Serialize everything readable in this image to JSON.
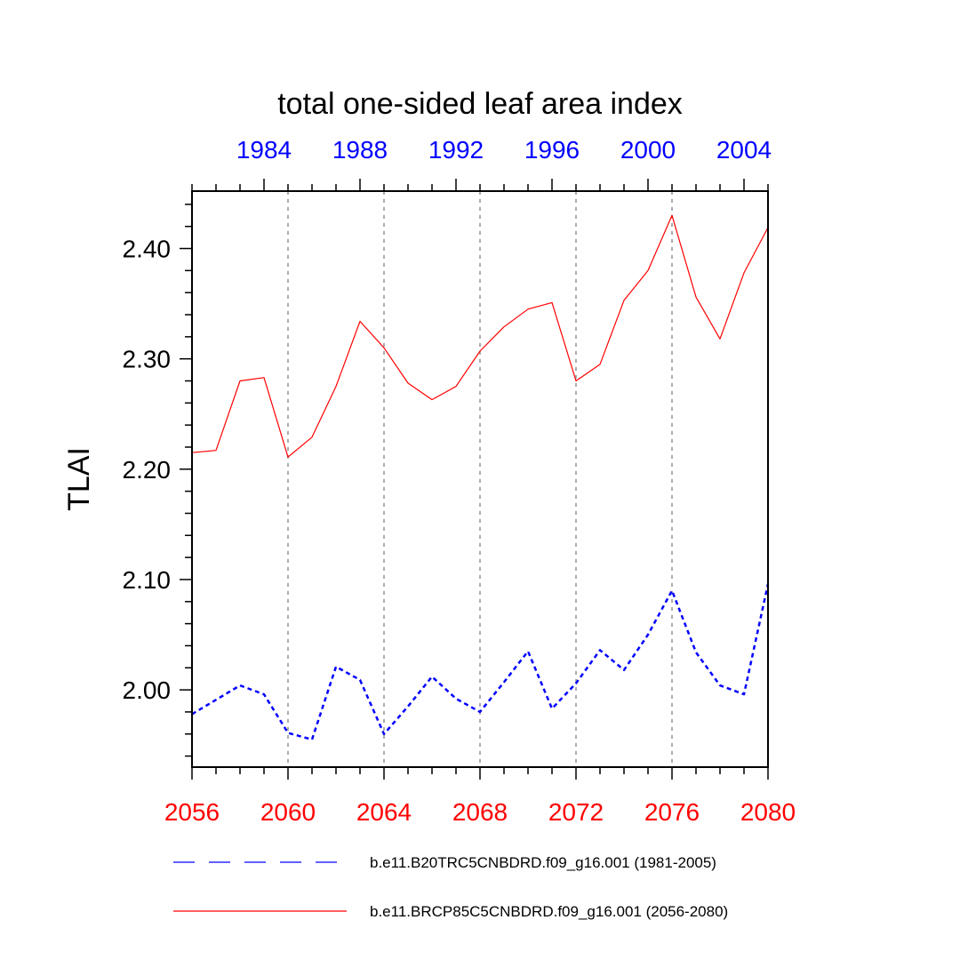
{
  "chart_data": {
    "type": "line",
    "title": "total one-sided leaf area index",
    "ylabel": "TLAI",
    "xlabel": "",
    "bottom_axis": {
      "range": [
        2056,
        2080
      ],
      "ticks": [
        "2056",
        "2060",
        "2064",
        "2068",
        "2072",
        "2076",
        "2080"
      ],
      "color": "#ff0000"
    },
    "top_axis": {
      "range": [
        1981,
        2005
      ],
      "ticks": [
        "1984",
        "1988",
        "1992",
        "1996",
        "2000",
        "2004"
      ],
      "color": "#0000ff"
    },
    "ylim": [
      1.93,
      2.452
    ],
    "yticks": [
      "2.00",
      "2.10",
      "2.20",
      "2.30",
      "2.40"
    ],
    "vertical_gridlines_at": [
      2060,
      2064,
      2068,
      2072,
      2076
    ],
    "series": [
      {
        "name": "b.e11.B20TRC5CNBDRD.f09_g16.001 (1981-2005)",
        "color": "#0000ff",
        "style": "dashed",
        "x": [
          1981,
          1982,
          1983,
          1984,
          1985,
          1986,
          1987,
          1988,
          1989,
          1990,
          1991,
          1992,
          1993,
          1994,
          1995,
          1996,
          1997,
          1998,
          1999,
          2000,
          2001,
          2002,
          2003,
          2004,
          2005
        ],
        "values": [
          1.978,
          1.991,
          2.004,
          1.996,
          1.961,
          1.955,
          2.021,
          2.009,
          1.96,
          1.985,
          2.012,
          1.992,
          1.98,
          2.007,
          2.035,
          1.983,
          2.006,
          2.036,
          2.018,
          2.05,
          2.09,
          2.034,
          2.004,
          1.996,
          2.096
        ]
      },
      {
        "name": "b.e11.BRCP85C5CNBDRD.f09_g16.001 (2056-2080)",
        "color": "#ff0000",
        "style": "solid",
        "x": [
          2056,
          2057,
          2058,
          2059,
          2060,
          2061,
          2062,
          2063,
          2064,
          2065,
          2066,
          2067,
          2068,
          2069,
          2070,
          2071,
          2072,
          2073,
          2074,
          2075,
          2076,
          2077,
          2078,
          2079,
          2080
        ],
        "values": [
          2.215,
          2.217,
          2.28,
          2.283,
          2.211,
          2.229,
          2.275,
          2.334,
          2.31,
          2.278,
          2.263,
          2.275,
          2.307,
          2.329,
          2.345,
          2.351,
          2.28,
          2.295,
          2.353,
          2.38,
          2.43,
          2.356,
          2.318,
          2.378,
          2.419
        ]
      }
    ],
    "legend_placement": "bottom"
  }
}
